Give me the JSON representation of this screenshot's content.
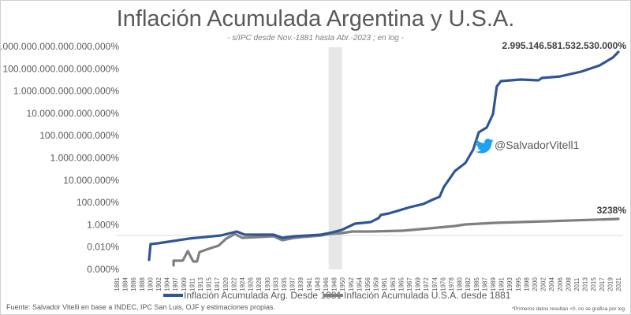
{
  "chart_data": {
    "type": "line",
    "title": "Inflación Acumulada Argentina y U.S.A.",
    "subtitle": "- s/IPC desde Nov.-1881 hasta Abr.-2023 ; en log -",
    "yscale": "log",
    "ylim_log10_percent": [
      -1,
      19
    ],
    "y_tick_labels": [
      "0.000%",
      "0.010%",
      "1.000%",
      "100.000%",
      "10.000.000%",
      "1.000.000.000%",
      "100.000.000.000%",
      "10.000.000.000.000%",
      "1.000.000.000.000.000%",
      "100.000.000.000.000.000%",
      "10.000.000.000.000.000.000%"
    ],
    "x_tick_labels": [
      "1881",
      "1884",
      "1886",
      "1888",
      "1900",
      "1902",
      "1904",
      "1907",
      "1909",
      "1911",
      "1913",
      "1915",
      "1917",
      "1920",
      "1922",
      "1924",
      "1926",
      "1928",
      "1930",
      "1933",
      "1935",
      "1937",
      "1939",
      "1941",
      "1943",
      "1946",
      "1948",
      "1950",
      "1952",
      "1954",
      "1956",
      "1959",
      "1961",
      "1963",
      "1965",
      "1967",
      "1969",
      "1972",
      "1974",
      "1976",
      "1978",
      "1980",
      "1982",
      "1985",
      "1987",
      "1989",
      "1991",
      "1993",
      "1995",
      "1998",
      "2000",
      "2002",
      "2004",
      "2006",
      "2008",
      "2011",
      "2013",
      "2015",
      "2017",
      "2019",
      "2021"
    ],
    "highlight_range_years": [
      1946.7,
      1949.9
    ],
    "series": [
      {
        "name": "Inflación Acumulada Arg. Desde 1881",
        "color": "#2f5597",
        "points_year_log10_percent": [
          [
            1898.4,
            -0.15
          ],
          [
            1900.1,
            1.26
          ],
          [
            1901.8,
            1.33
          ],
          [
            1910.4,
            1.76
          ],
          [
            1918.4,
            2.04
          ],
          [
            1922.7,
            2.39
          ],
          [
            1924.6,
            2.11
          ],
          [
            1932.3,
            2.11
          ],
          [
            1934.6,
            1.83
          ],
          [
            1937.5,
            1.97
          ],
          [
            1944.3,
            2.11
          ],
          [
            1946.8,
            2.25
          ],
          [
            1949.8,
            2.53
          ],
          [
            1953.0,
            3.1
          ],
          [
            1954.9,
            3.17
          ],
          [
            1957.1,
            3.24
          ],
          [
            1959.6,
            3.59
          ],
          [
            1960.2,
            3.88
          ],
          [
            1962.1,
            4.02
          ],
          [
            1967.2,
            4.58
          ],
          [
            1971.1,
            4.87
          ],
          [
            1973.8,
            5.29
          ],
          [
            1975.2,
            5.5
          ],
          [
            1976.3,
            6.42
          ],
          [
            1978.9,
            7.83
          ],
          [
            1981.4,
            8.54
          ],
          [
            1983.9,
            9.74
          ],
          [
            1985.6,
            11.3
          ],
          [
            1987.5,
            11.72
          ],
          [
            1989.0,
            12.92
          ],
          [
            1989.4,
            13.98
          ],
          [
            1989.9,
            15.4
          ],
          [
            1990.9,
            15.89
          ],
          [
            1995.9,
            16.03
          ],
          [
            2000.9,
            15.96
          ],
          [
            2001.7,
            16.17
          ],
          [
            2006.0,
            16.31
          ],
          [
            2012.1,
            16.74
          ],
          [
            2016.5,
            17.3
          ],
          [
            2019.7,
            18.01
          ],
          [
            2021.2,
            18.51
          ]
        ],
        "end_label": "2.995.146.581.532.530.000%"
      },
      {
        "name": "Inflación Acumulada U.S.A. desde 1881",
        "color": "#7f7f7f",
        "points_year_log10_percent": [
          [
            1906.4,
            -0.65
          ],
          [
            1906.4,
            -0.22
          ],
          [
            1908.8,
            -0.22
          ],
          [
            1910.0,
            0.63
          ],
          [
            1911.3,
            -0.29
          ],
          [
            1912.2,
            -0.29
          ],
          [
            1912.8,
            0.55
          ],
          [
            1915.5,
            0.91
          ],
          [
            1917.5,
            1.12
          ],
          [
            1920.2,
            1.76
          ],
          [
            1922.3,
            2.18
          ],
          [
            1924.0,
            1.83
          ],
          [
            1932.3,
            1.97
          ],
          [
            1934.6,
            1.61
          ],
          [
            1937.5,
            1.83
          ],
          [
            1944.3,
            2.04
          ],
          [
            1946.8,
            2.18
          ],
          [
            1949.8,
            2.25
          ],
          [
            1952.4,
            2.39
          ],
          [
            1957.1,
            2.39
          ],
          [
            1965.3,
            2.46
          ],
          [
            1972.5,
            2.67
          ],
          [
            1978.9,
            2.89
          ],
          [
            1981.4,
            3.03
          ],
          [
            1989.4,
            3.17
          ],
          [
            2002.8,
            3.31
          ],
          [
            2021.2,
            3.52
          ]
        ],
        "end_label": "3238%"
      }
    ],
    "legend_position": "bottom"
  },
  "watermark_handle": "@SalvadorVitell1",
  "footer": {
    "source": "Fuente: Salvador Vitelli en base a INDEC, IPC San Luis, OJF y estimaciones propias.",
    "note": "*Primeros datos resultan <0, no se grafica por log"
  }
}
